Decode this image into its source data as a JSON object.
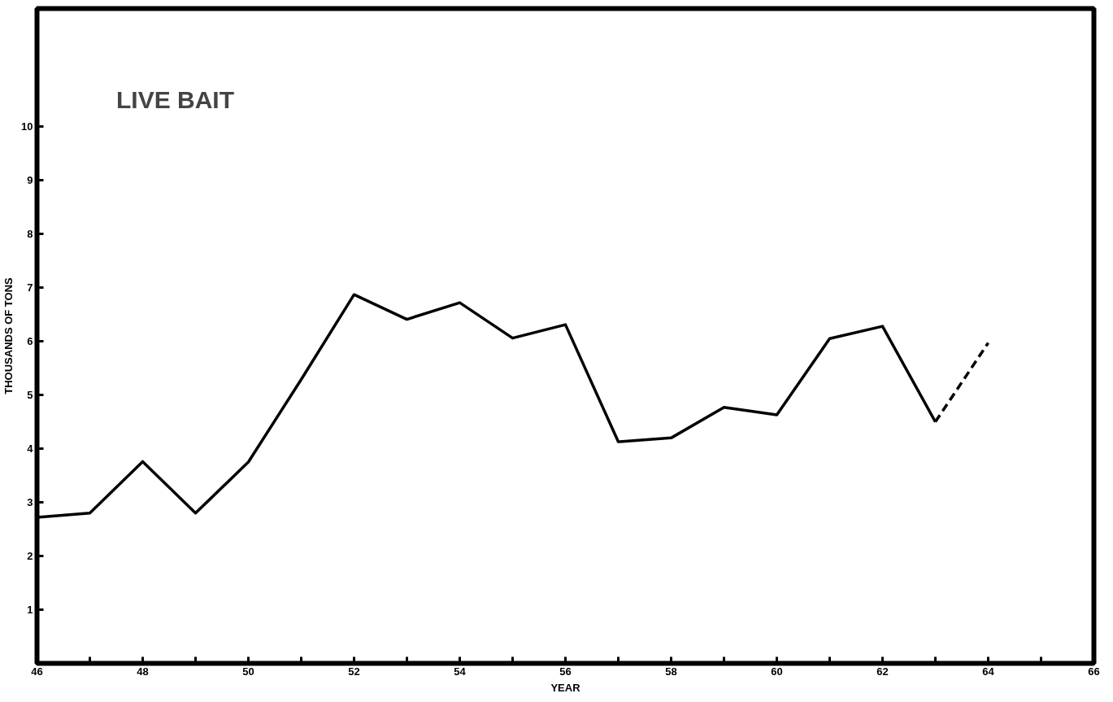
{
  "chart_data": {
    "type": "line",
    "title": "LIVE BAIT",
    "xlabel": "YEAR",
    "ylabel": "THOUSANDS OF TONS",
    "xlim": [
      46,
      66
    ],
    "ylim": [
      0,
      12.2
    ],
    "xticks": [
      46,
      {
        "value": 47,
        "label": null
      },
      48,
      {
        "value": 49,
        "label": null
      },
      50,
      {
        "value": 51,
        "label": null
      },
      52,
      {
        "value": 53,
        "label": null
      },
      54,
      {
        "value": 55,
        "label": null
      },
      56,
      {
        "value": 57,
        "label": null
      },
      58,
      {
        "value": 59,
        "label": null
      },
      60,
      {
        "value": 61,
        "label": null
      },
      62,
      {
        "value": 63,
        "label": null
      },
      64,
      {
        "value": 65,
        "label": null
      },
      66
    ],
    "yticks": [
      1,
      2,
      3,
      4,
      5,
      6,
      7,
      8,
      9,
      10
    ],
    "grid": false,
    "marker": "none",
    "series": [
      {
        "color": "#000000",
        "line_style": "solid",
        "x": [
          46,
          47,
          48,
          49,
          50,
          51,
          52,
          53,
          54,
          55,
          56,
          57,
          58,
          59,
          60,
          61,
          62,
          63
        ],
        "values": [
          2.72,
          2.8,
          3.76,
          2.8,
          3.75,
          5.29,
          6.87,
          6.41,
          6.72,
          6.06,
          6.31,
          4.13,
          4.2,
          4.77,
          4.63,
          6.05,
          6.28,
          4.5
        ]
      },
      {
        "color": "#000000",
        "line_style": "dashed",
        "x": [
          63,
          64
        ],
        "values": [
          4.5,
          5.97
        ]
      }
    ]
  }
}
